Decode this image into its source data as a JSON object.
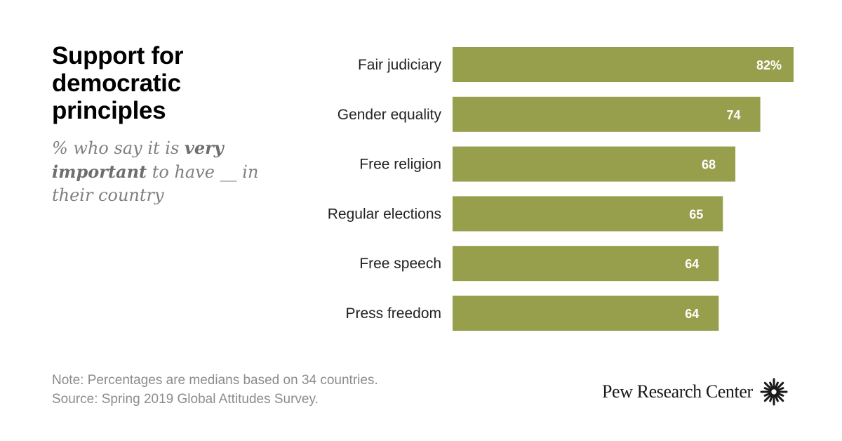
{
  "title": "Support for democratic principles",
  "subtitle": {
    "part1": "% who say it is ",
    "bold": "very important",
    "part2": " to have __ in their country"
  },
  "note": "Note: Percentages are medians based on 34 countries.",
  "source": "Source: Spring 2019 Global Attitudes Survey.",
  "logo_text": "Pew Research Center",
  "colors": {
    "bar": "#979f4c"
  },
  "chart_data": {
    "type": "bar",
    "orientation": "horizontal",
    "categories": [
      "Fair judiciary",
      "Gender equality",
      "Free religion",
      "Regular elections",
      "Free speech",
      "Press freedom"
    ],
    "values": [
      82,
      74,
      68,
      65,
      64,
      64
    ],
    "value_labels": [
      "82%",
      "74",
      "68",
      "65",
      "64",
      "64"
    ],
    "xlim": [
      0,
      100
    ],
    "grid": false,
    "legend": "none"
  }
}
